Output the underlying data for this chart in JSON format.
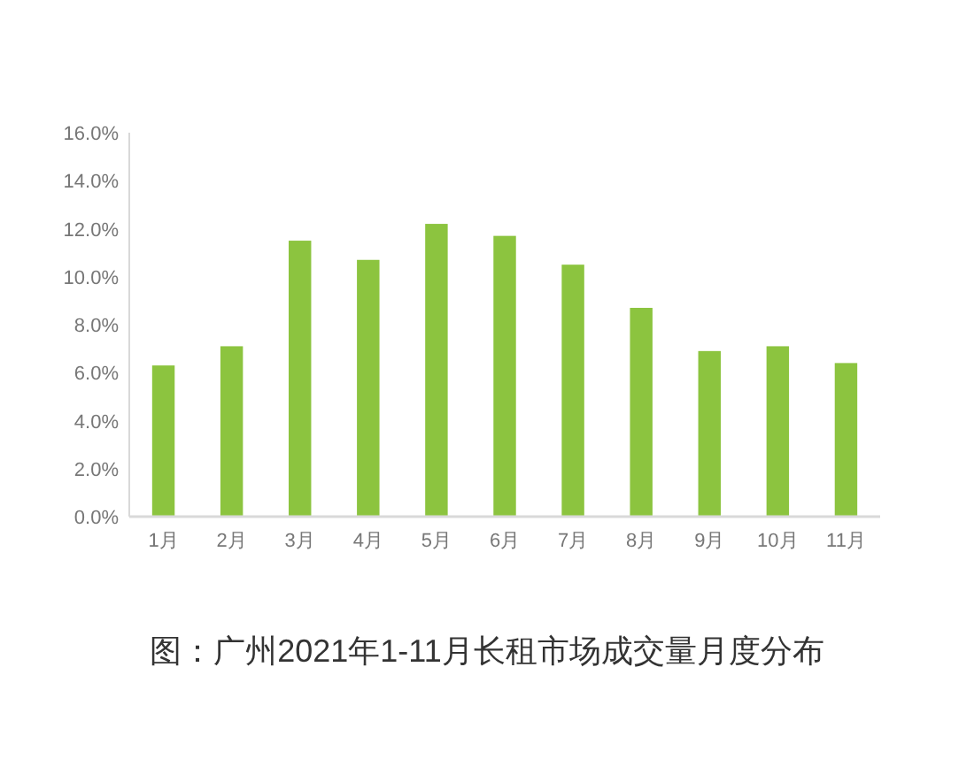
{
  "chart_data": {
    "type": "bar",
    "title": "图：广州2021年1-11月长租市场成交量月度分布",
    "categories": [
      "1月",
      "2月",
      "3月",
      "4月",
      "5月",
      "6月",
      "7月",
      "8月",
      "9月",
      "10月",
      "11月"
    ],
    "values": [
      6.3,
      7.1,
      11.5,
      10.7,
      12.2,
      11.7,
      10.5,
      8.7,
      6.9,
      7.1,
      6.4
    ],
    "color": "#8cc43f",
    "ylim": [
      0,
      16
    ],
    "yticks": [
      {
        "value": 0,
        "label": "0.0%"
      },
      {
        "value": 2,
        "label": "2.0%"
      },
      {
        "value": 4,
        "label": "4.0%"
      },
      {
        "value": 6,
        "label": "6.0%"
      },
      {
        "value": 8,
        "label": "8.0%"
      },
      {
        "value": 10,
        "label": "10.0%"
      },
      {
        "value": 12,
        "label": "12.0%"
      },
      {
        "value": 14,
        "label": "14.0%"
      },
      {
        "value": 16,
        "label": "16.0%"
      }
    ],
    "grid": false
  }
}
